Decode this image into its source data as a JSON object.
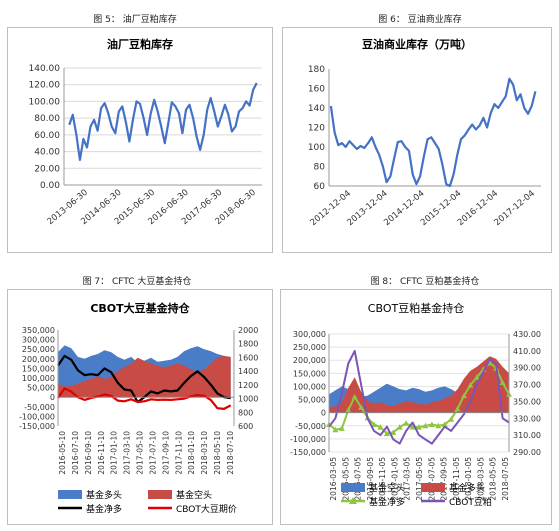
{
  "captions": {
    "fig5": "图 5： 油厂豆粕库存",
    "fig6": "图 6： 豆油商业库存",
    "fig7": "图 7： CFTC 大豆基金持仓",
    "fig8": "图 8： CFTC 豆粕基金持仓"
  },
  "chart_data": [
    {
      "type": "line",
      "title": "油厂豆粕库存",
      "x_ticks": [
        "2013-06-30",
        "2014-06-30",
        "2015-06-30",
        "2016-06-30",
        "2017-06-30",
        "2018-06-30"
      ],
      "y_ticks": [
        "0.00",
        "20.00",
        "40.00",
        "60.00",
        "80.00",
        "100.00",
        "120.00",
        "140.00"
      ],
      "ylim": [
        0,
        140
      ],
      "xlim": [
        2013.3,
        2018.9
      ],
      "grid": true,
      "series": [
        {
          "color": "#4472c4",
          "x": [
            2013.45,
            2013.55,
            2013.65,
            2013.75,
            2013.85,
            2013.95,
            2014.05,
            2014.15,
            2014.25,
            2014.35,
            2014.45,
            2014.55,
            2014.65,
            2014.75,
            2014.85,
            2014.95,
            2015.05,
            2015.15,
            2015.25,
            2015.35,
            2015.45,
            2015.55,
            2015.65,
            2015.75,
            2015.85,
            2015.95,
            2016.05,
            2016.15,
            2016.25,
            2016.35,
            2016.45,
            2016.55,
            2016.65,
            2016.75,
            2016.85,
            2016.95,
            2017.05,
            2017.15,
            2017.25,
            2017.35,
            2017.45,
            2017.55,
            2017.65,
            2017.75,
            2017.85,
            2017.95,
            2018.05,
            2018.15,
            2018.25,
            2018.35,
            2018.45,
            2018.55,
            2018.65,
            2018.75
          ],
          "y": [
            72,
            84,
            60,
            30,
            55,
            45,
            70,
            78,
            65,
            92,
            98,
            86,
            70,
            62,
            88,
            94,
            75,
            52,
            78,
            100,
            97,
            80,
            60,
            85,
            102,
            88,
            70,
            50,
            74,
            99,
            94,
            86,
            62,
            90,
            96,
            80,
            58,
            42,
            60,
            90,
            104,
            88,
            70,
            82,
            96,
            84,
            64,
            70,
            88,
            92,
            100,
            95,
            114,
            122
          ]
        }
      ]
    },
    {
      "type": "line",
      "title": "豆油商业库存（万吨）",
      "x_ticks": [
        "2012-12-04",
        "2013-12-04",
        "2014-12-04",
        "2015-12-04",
        "2016-12-04",
        "2017-12-04"
      ],
      "y_ticks": [
        "60",
        "80",
        "100",
        "120",
        "140",
        "160",
        "180"
      ],
      "ylim": [
        60,
        180
      ],
      "xlim": [
        2012.9,
        2018.6
      ],
      "grid": false,
      "series": [
        {
          "color": "#4472c4",
          "x": [
            2012.95,
            2013.05,
            2013.15,
            2013.25,
            2013.35,
            2013.45,
            2013.55,
            2013.65,
            2013.75,
            2013.85,
            2013.95,
            2014.05,
            2014.15,
            2014.25,
            2014.35,
            2014.45,
            2014.55,
            2014.65,
            2014.75,
            2014.85,
            2014.95,
            2015.05,
            2015.15,
            2015.25,
            2015.35,
            2015.45,
            2015.55,
            2015.65,
            2015.75,
            2015.85,
            2015.95,
            2016.05,
            2016.15,
            2016.25,
            2016.35,
            2016.45,
            2016.55,
            2016.65,
            2016.75,
            2016.85,
            2016.95,
            2017.05,
            2017.15,
            2017.25,
            2017.35,
            2017.45,
            2017.55,
            2017.65,
            2017.75,
            2017.85,
            2017.95,
            2018.05,
            2018.15,
            2018.25,
            2018.35,
            2018.45
          ],
          "y": [
            142,
            115,
            102,
            104,
            100,
            106,
            102,
            98,
            101,
            99,
            104,
            110,
            100,
            92,
            80,
            64,
            70,
            88,
            105,
            106,
            100,
            96,
            72,
            62,
            70,
            90,
            108,
            110,
            104,
            98,
            82,
            62,
            60,
            72,
            92,
            108,
            112,
            118,
            123,
            118,
            122,
            130,
            120,
            135,
            144,
            140,
            146,
            152,
            170,
            164,
            148,
            154,
            140,
            134,
            142,
            157
          ]
        }
      ]
    },
    {
      "type": "area",
      "title": "CBOT大豆基金持仓",
      "x_ticks": [
        "2016-05-10",
        "2016-07-10",
        "2016-09-10",
        "2016-11-10",
        "2017-01-10",
        "2017-03-10",
        "2017-05-10",
        "2017-07-10",
        "2017-09-10",
        "2017-11-10",
        "2018-01-10",
        "2018-03-10",
        "2018-05-10",
        "2018-07-10"
      ],
      "y_left_ticks": [
        "350,000",
        "300,000",
        "250,000",
        "200,000",
        "150,000",
        "100,000",
        "50,000",
        "0",
        "-50,000",
        "-100,000",
        "-150,000"
      ],
      "y_right_ticks": [
        "2000",
        "1800",
        "1600",
        "1400",
        "1200",
        "1000",
        "800",
        "600"
      ],
      "ylim_left": [
        -150000,
        350000
      ],
      "ylim_right": [
        600,
        2000
      ],
      "xlim": [
        0,
        26.5
      ],
      "legend": [
        "基金多头",
        "基金空头",
        "基金净多",
        "CBOT大豆期价"
      ],
      "legend_position": "bottom",
      "series": [
        {
          "name": "基金多头",
          "type": "area",
          "axis": "left",
          "color": "#4a7cc7",
          "x": [
            0,
            1,
            2,
            3,
            4,
            5,
            6,
            7,
            8,
            9,
            10,
            11,
            12,
            13,
            14,
            15,
            16,
            17,
            18,
            19,
            20,
            21,
            22,
            23,
            24,
            25,
            26
          ],
          "y": [
            235000,
            270000,
            255000,
            210000,
            200000,
            215000,
            225000,
            245000,
            235000,
            210000,
            195000,
            210000,
            180000,
            190000,
            205000,
            185000,
            190000,
            195000,
            210000,
            240000,
            255000,
            265000,
            250000,
            240000,
            225000,
            215000,
            205000
          ]
        },
        {
          "name": "基金空头",
          "type": "area",
          "axis": "left",
          "color": "#c94b45",
          "x": [
            0,
            1,
            2,
            3,
            4,
            5,
            6,
            7,
            8,
            9,
            10,
            11,
            12,
            13,
            14,
            15,
            16,
            17,
            18,
            19,
            20,
            21,
            22,
            23,
            24,
            25,
            26
          ],
          "y": [
            70000,
            55000,
            60000,
            70000,
            85000,
            95000,
            110000,
            95000,
            105000,
            135000,
            155000,
            175000,
            205000,
            190000,
            175000,
            165000,
            155000,
            165000,
            175000,
            165000,
            145000,
            130000,
            145000,
            175000,
            205000,
            215000,
            210000
          ]
        },
        {
          "name": "基金净多",
          "type": "line",
          "axis": "left",
          "color": "#000000",
          "x": [
            0,
            1,
            2,
            3,
            4,
            5,
            6,
            7,
            8,
            9,
            10,
            11,
            12,
            13,
            14,
            15,
            16,
            17,
            18,
            19,
            20,
            21,
            22,
            23,
            24,
            25,
            26
          ],
          "y": [
            165000,
            215000,
            195000,
            140000,
            115000,
            120000,
            115000,
            150000,
            130000,
            75000,
            40000,
            35000,
            -25000,
            0,
            30000,
            20000,
            35000,
            30000,
            35000,
            75000,
            110000,
            135000,
            105000,
            65000,
            20000,
            0,
            -5000
          ]
        },
        {
          "name": "CBOT大豆期价",
          "type": "line",
          "axis": "right",
          "color": "#e00000",
          "x": [
            0,
            1,
            2,
            3,
            4,
            5,
            6,
            7,
            8,
            9,
            10,
            11,
            12,
            13,
            14,
            15,
            16,
            17,
            18,
            19,
            20,
            21,
            22,
            23,
            24,
            25,
            26
          ],
          "y": [
            1010,
            1150,
            1100,
            1020,
            980,
            1010,
            1030,
            1060,
            1040,
            970,
            960,
            990,
            950,
            960,
            990,
            980,
            985,
            980,
            990,
            1000,
            1030,
            1050,
            1040,
            980,
            860,
            850,
            900
          ]
        }
      ]
    },
    {
      "type": "area",
      "title": "CBOT豆粕基金持仓",
      "x_ticks": [
        "2016-03-05",
        "2016-05-05",
        "2016-07-05",
        "2016-09-05",
        "2016-11-05",
        "2017-01-05",
        "2017-03-05",
        "2017-05-05",
        "2017-07-05",
        "2017-09-05",
        "2017-11-05",
        "2018-01-05",
        "2018-03-05",
        "2018-05-05",
        "2018-07-05"
      ],
      "y_left_ticks": [
        "300,000",
        "250,000",
        "200,000",
        "150,000",
        "100,000",
        "50,000",
        "0",
        "-50,000",
        "-100,000",
        "-150,000"
      ],
      "y_right_ticks": [
        "430.00",
        "410.00",
        "390.00",
        "370.00",
        "350.00",
        "330.00",
        "310.00",
        "290.00"
      ],
      "ylim_left": [
        -150000,
        300000
      ],
      "ylim_right": [
        290,
        430
      ],
      "xlim": [
        0,
        28
      ],
      "legend": [
        "基金空头",
        "基金多头",
        "基金净多",
        "CBOT豆粕"
      ],
      "legend_position": "bottom",
      "series": [
        {
          "name": "基金空头",
          "type": "area",
          "axis": "left",
          "color": "#4a7cc7",
          "x": [
            0,
            1,
            2,
            3,
            4,
            5,
            6,
            7,
            8,
            9,
            10,
            11,
            12,
            13,
            14,
            15,
            16,
            17,
            18,
            19,
            20,
            21,
            22,
            23,
            24,
            25,
            26,
            27,
            28
          ],
          "y": [
            70000,
            85000,
            100000,
            90000,
            75000,
            60000,
            65000,
            80000,
            95000,
            110000,
            100000,
            90000,
            85000,
            95000,
            90000,
            80000,
            85000,
            95000,
            100000,
            90000,
            75000,
            65000,
            55000,
            40000,
            30000,
            25000,
            35000,
            60000,
            80000
          ]
        },
        {
          "name": "基金多头",
          "type": "area",
          "axis": "left",
          "color": "#c94b45",
          "x": [
            0,
            1,
            2,
            3,
            4,
            5,
            6,
            7,
            8,
            9,
            10,
            11,
            12,
            13,
            14,
            15,
            16,
            17,
            18,
            19,
            20,
            21,
            22,
            23,
            24,
            25,
            26,
            27,
            28
          ],
          "y": [
            20000,
            25000,
            40000,
            95000,
            135000,
            80000,
            45000,
            35000,
            40000,
            30000,
            25000,
            35000,
            45000,
            40000,
            35000,
            30000,
            40000,
            45000,
            55000,
            65000,
            90000,
            130000,
            160000,
            175000,
            195000,
            215000,
            205000,
            175000,
            150000
          ]
        },
        {
          "name": "基金净多",
          "type": "line",
          "axis": "left",
          "color": "#8dc63f",
          "x": [
            0,
            1,
            2,
            3,
            4,
            5,
            6,
            7,
            8,
            9,
            10,
            11,
            12,
            13,
            14,
            15,
            16,
            17,
            18,
            19,
            20,
            21,
            22,
            23,
            24,
            25,
            26,
            27,
            28
          ],
          "y": [
            -45000,
            -65000,
            -60000,
            10000,
            60000,
            20000,
            -20000,
            -45000,
            -55000,
            -80000,
            -75000,
            -55000,
            -40000,
            -55000,
            -55000,
            -50000,
            -45000,
            -50000,
            -45000,
            -25000,
            15000,
            65000,
            105000,
            135000,
            165000,
            190000,
            170000,
            115000,
            70000
          ]
        },
        {
          "name": "CBOT豆粕",
          "type": "line",
          "axis": "right",
          "color": "#7b55b5",
          "x": [
            0,
            1,
            2,
            3,
            4,
            5,
            6,
            7,
            8,
            9,
            10,
            11,
            12,
            13,
            14,
            15,
            16,
            17,
            18,
            19,
            20,
            21,
            22,
            23,
            24,
            25,
            26,
            27,
            28
          ],
          "y": [
            320,
            330,
            360,
            395,
            410,
            370,
            330,
            315,
            310,
            320,
            305,
            300,
            315,
            325,
            310,
            305,
            300,
            310,
            320,
            315,
            325,
            335,
            350,
            370,
            385,
            400,
            395,
            330,
            325
          ]
        }
      ]
    }
  ]
}
